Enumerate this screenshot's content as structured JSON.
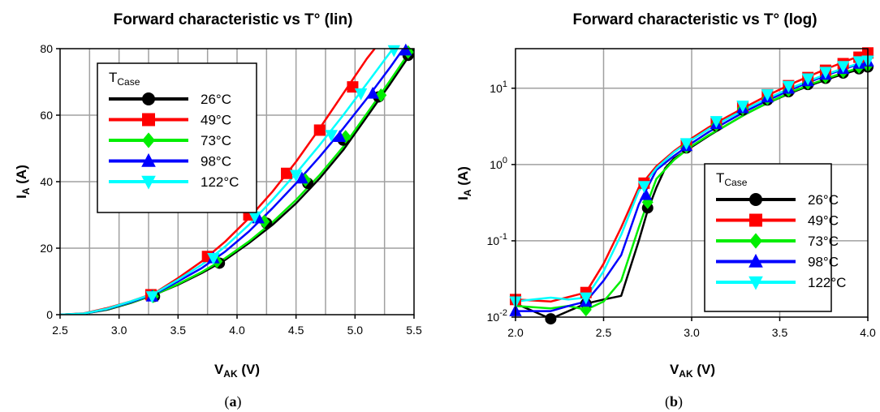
{
  "chart_data": [
    {
      "type": "line",
      "title": "Forward characteristic vs T° (lin)",
      "panel_label": "a",
      "xlabel": {
        "main": "V",
        "sub": "AK",
        "unit": " (V)"
      },
      "ylabel": {
        "main": "I",
        "sub": "A",
        "unit": " (A)"
      },
      "xlim": [
        2.5,
        5.5
      ],
      "ylim": [
        0,
        80
      ],
      "xticks": [
        "2.5",
        "3.0",
        "3.5",
        "4.0",
        "4.5",
        "5.0",
        "5.5"
      ],
      "yticks": [
        "0",
        "20",
        "40",
        "60",
        "80"
      ],
      "y_scale": "linear",
      "grid": true,
      "legend": {
        "title": "T",
        "title_sub": "Case",
        "position": "top-left"
      },
      "series": [
        {
          "name": "26°C",
          "color": "#000000",
          "marker": "circle",
          "x": [
            2.5,
            2.7,
            2.9,
            3.1,
            3.3,
            3.5,
            3.7,
            3.9,
            4.1,
            4.3,
            4.5,
            4.7,
            4.9,
            5.1,
            5.3,
            5.5
          ],
          "y": [
            0,
            0.3,
            1.5,
            3.5,
            6.0,
            9.0,
            12.5,
            16.5,
            21.5,
            27.0,
            33.5,
            41.0,
            49.5,
            59.5,
            69.5,
            80.0
          ],
          "markers_x": [
            3.3,
            3.85,
            4.25,
            4.6,
            4.9,
            5.2,
            5.45
          ],
          "markers_y": [
            5.5,
            15.5,
            27.5,
            39.5,
            52.5,
            65.5,
            78.0
          ]
        },
        {
          "name": "49°C",
          "color": "#ff0000",
          "marker": "square",
          "x": [
            2.5,
            2.7,
            2.9,
            3.1,
            3.3,
            3.5,
            3.7,
            3.9,
            4.1,
            4.3,
            4.5,
            4.7,
            4.9,
            5.1,
            5.3
          ],
          "y": [
            0,
            0.4,
            2.0,
            4.0,
            6.5,
            11.0,
            16.0,
            22.0,
            29.0,
            37.0,
            46.0,
            56.0,
            66.5,
            77.0,
            86.0
          ],
          "markers_x": [
            3.27,
            3.75,
            4.1,
            4.42,
            4.7,
            4.98
          ],
          "markers_y": [
            6.0,
            17.5,
            30.0,
            42.5,
            55.5,
            68.5
          ]
        },
        {
          "name": "73°C",
          "color": "#00ee00",
          "marker": "diamond",
          "x": [
            2.5,
            2.7,
            2.9,
            3.1,
            3.3,
            3.5,
            3.7,
            3.9,
            4.1,
            4.3,
            4.5,
            4.7,
            4.9,
            5.1,
            5.3,
            5.5
          ],
          "y": [
            0,
            0.3,
            1.6,
            3.6,
            6.0,
            9.2,
            12.8,
            17.0,
            22.0,
            27.8,
            34.5,
            42.0,
            50.5,
            60.5,
            70.5,
            81.0
          ],
          "markers_x": [
            3.29,
            3.83,
            4.23,
            4.58,
            4.92,
            5.22,
            5.45
          ],
          "markers_y": [
            5.5,
            16.0,
            28.0,
            40.5,
            53.5,
            66.0,
            79.0
          ]
        },
        {
          "name": "98°C",
          "color": "#0000ff",
          "marker": "triangle-up",
          "x": [
            2.5,
            2.7,
            2.9,
            3.1,
            3.3,
            3.5,
            3.7,
            3.9,
            4.1,
            4.3,
            4.5,
            4.7,
            4.9,
            5.1,
            5.3,
            5.45
          ],
          "y": [
            0,
            0.3,
            1.7,
            3.8,
            6.2,
            10.0,
            14.0,
            19.0,
            25.0,
            32.0,
            39.5,
            47.5,
            56.0,
            65.0,
            74.5,
            82.0
          ],
          "markers_x": [
            3.28,
            3.8,
            4.18,
            4.55,
            4.87,
            5.15,
            5.43
          ],
          "markers_y": [
            5.5,
            17.0,
            29.0,
            41.0,
            53.5,
            66.5,
            79.5
          ]
        },
        {
          "name": "122°C",
          "color": "#00ffff",
          "marker": "triangle-down",
          "x": [
            2.5,
            2.7,
            2.9,
            3.1,
            3.3,
            3.5,
            3.7,
            3.9,
            4.1,
            4.3,
            4.5,
            4.7,
            4.9,
            5.1,
            5.3,
            5.4
          ],
          "y": [
            0,
            0.35,
            1.8,
            4.0,
            6.4,
            10.5,
            15.0,
            20.5,
            27.0,
            34.5,
            42.5,
            51.0,
            60.0,
            69.5,
            79.0,
            84.0
          ],
          "markers_x": [
            3.28,
            3.8,
            4.15,
            4.5,
            4.8,
            5.05,
            5.33
          ],
          "markers_y": [
            5.5,
            17.0,
            29.5,
            42.0,
            54.0,
            66.5,
            79.5
          ]
        }
      ]
    },
    {
      "type": "line",
      "title": "Forward characteristic vs T° (log)",
      "panel_label": "b",
      "xlabel": {
        "main": "V",
        "sub": "AK",
        "unit": " (V)"
      },
      "ylabel": {
        "main": "I",
        "sub": "A",
        "unit": " (A)"
      },
      "xlim": [
        2.0,
        4.0
      ],
      "ylim": [
        0.01,
        33
      ],
      "xticks": [
        "2.0",
        "2.5",
        "3.0",
        "3.5",
        "4.0"
      ],
      "yticks": [
        {
          "value": 0.01,
          "base": "10",
          "exp": "-2"
        },
        {
          "value": 0.1,
          "base": "10",
          "exp": "-1"
        },
        {
          "value": 1,
          "base": "10",
          "exp": "0"
        },
        {
          "value": 10,
          "base": "10",
          "exp": "1"
        }
      ],
      "y_scale": "log",
      "grid": true,
      "legend": {
        "title": "T",
        "title_sub": "Case",
        "position": "bottom-right"
      },
      "series": [
        {
          "name": "26°C",
          "color": "#000000",
          "marker": "circle",
          "x": [
            2.0,
            2.1,
            2.2,
            2.3,
            2.4,
            2.5,
            2.6,
            2.7,
            2.75,
            2.8,
            2.85,
            2.9,
            3.0,
            3.1,
            3.2,
            3.3,
            3.4,
            3.5,
            3.6,
            3.7,
            3.8,
            3.9,
            4.0
          ],
          "y": [
            0.015,
            0.012,
            0.0095,
            0.012,
            0.015,
            0.017,
            0.019,
            0.1,
            0.25,
            0.5,
            0.9,
            1.2,
            1.7,
            2.4,
            3.3,
            4.5,
            5.9,
            7.5,
            9.4,
            11.5,
            13.8,
            16.3,
            19.0
          ],
          "markers_x": [
            2.2,
            2.4,
            2.75,
            2.97,
            3.14,
            3.29,
            3.43,
            3.55,
            3.66,
            3.76,
            3.86,
            3.95,
            4.0
          ],
          "markers_y": [
            0.0095,
            0.015,
            0.27,
            1.65,
            3.2,
            5.2,
            7.0,
            9.0,
            11.2,
            13.5,
            15.8,
            18.0,
            19.0
          ]
        },
        {
          "name": "49°C",
          "color": "#ff0000",
          "marker": "square",
          "x": [
            2.0,
            2.2,
            2.4,
            2.5,
            2.6,
            2.7,
            2.8,
            2.9,
            3.0,
            3.1,
            3.2,
            3.3,
            3.4,
            3.5,
            3.6,
            3.7,
            3.8,
            3.9,
            4.0
          ],
          "y": [
            0.017,
            0.016,
            0.021,
            0.05,
            0.15,
            0.5,
            0.95,
            1.5,
            2.2,
            3.1,
            4.2,
            5.6,
            7.4,
            9.6,
            12.3,
            15.5,
            19.3,
            23.8,
            29.0
          ],
          "markers_x": [
            2.0,
            2.4,
            2.73,
            2.97,
            3.14,
            3.29,
            3.43,
            3.55,
            3.66,
            3.76,
            3.86,
            3.95,
            4.0
          ],
          "markers_y": [
            0.017,
            0.021,
            0.57,
            1.8,
            3.5,
            5.8,
            8.2,
            10.8,
            13.8,
            17.2,
            21.0,
            25.5,
            29.0
          ]
        },
        {
          "name": "73°C",
          "color": "#00ee00",
          "marker": "diamond",
          "x": [
            2.0,
            2.2,
            2.3,
            2.4,
            2.5,
            2.6,
            2.7,
            2.75,
            2.8,
            2.9,
            3.0,
            3.1,
            3.2,
            3.3,
            3.4,
            3.5,
            3.6,
            3.7,
            3.8,
            3.9,
            4.0
          ],
          "y": [
            0.014,
            0.013,
            0.014,
            0.0125,
            0.016,
            0.03,
            0.15,
            0.32,
            0.65,
            1.15,
            1.75,
            2.45,
            3.3,
            4.5,
            5.9,
            7.6,
            9.6,
            11.8,
            14.3,
            17.0,
            20.0
          ],
          "markers_x": [
            2.4,
            2.75,
            2.97,
            3.14,
            3.29,
            3.43,
            3.55,
            3.66,
            3.76,
            3.86,
            3.95,
            4.0
          ],
          "markers_y": [
            0.0125,
            0.32,
            1.7,
            3.3,
            5.4,
            7.3,
            9.4,
            11.7,
            14.1,
            16.6,
            19.0,
            20.0
          ]
        },
        {
          "name": "98°C",
          "color": "#0000ff",
          "marker": "triangle-up",
          "x": [
            2.0,
            2.1,
            2.2,
            2.3,
            2.4,
            2.5,
            2.6,
            2.7,
            2.8,
            2.9,
            3.0,
            3.1,
            3.2,
            3.3,
            3.4,
            3.5,
            3.6,
            3.7,
            3.8,
            3.9,
            4.0
          ],
          "y": [
            0.012,
            0.012,
            0.012,
            0.014,
            0.016,
            0.03,
            0.065,
            0.3,
            0.85,
            1.3,
            1.9,
            2.7,
            3.65,
            4.9,
            6.4,
            8.2,
            10.4,
            12.9,
            15.8,
            19.0,
            22.5
          ],
          "markers_x": [
            2.0,
            2.4,
            2.74,
            2.97,
            3.14,
            3.29,
            3.43,
            3.55,
            3.66,
            3.76,
            3.86,
            3.95,
            4.0
          ],
          "markers_y": [
            0.012,
            0.016,
            0.4,
            1.75,
            3.4,
            5.5,
            7.6,
            9.9,
            12.4,
            15.1,
            18.0,
            21.0,
            22.5
          ]
        },
        {
          "name": "122°C",
          "color": "#00ffff",
          "marker": "triangle-down",
          "x": [
            2.0,
            2.1,
            2.2,
            2.3,
            2.4,
            2.5,
            2.6,
            2.7,
            2.8,
            2.9,
            3.0,
            3.1,
            3.2,
            3.3,
            3.4,
            3.5,
            3.6,
            3.7,
            3.8,
            3.9,
            4.0
          ],
          "y": [
            0.016,
            0.017,
            0.018,
            0.017,
            0.018,
            0.04,
            0.12,
            0.45,
            0.9,
            1.45,
            2.1,
            2.95,
            3.95,
            5.25,
            6.8,
            8.7,
            10.9,
            13.4,
            16.3,
            19.5,
            23.0
          ],
          "markers_x": [
            2.0,
            2.4,
            2.73,
            2.97,
            3.14,
            3.29,
            3.43,
            3.55,
            3.66,
            3.76,
            3.86,
            3.95,
            4.0
          ],
          "markers_y": [
            0.016,
            0.018,
            0.52,
            1.9,
            3.7,
            5.9,
            8.3,
            10.7,
            13.4,
            16.3,
            19.5,
            22.5,
            23.0
          ]
        }
      ]
    }
  ]
}
